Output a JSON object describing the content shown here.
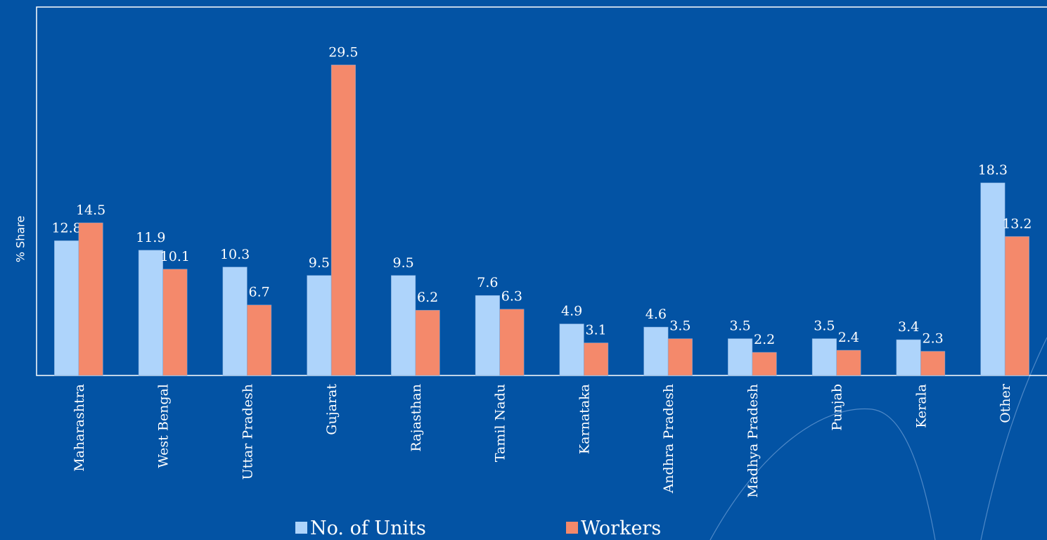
{
  "chart_data": {
    "type": "bar",
    "y_label": "% Share",
    "categories": [
      "Maharashtra",
      "West Bengal",
      "Uttar Pradesh",
      "Gujarat",
      "Rajasthan",
      "Tamil Nadu",
      "Karnataka",
      "Andhra Pradesh",
      "Madhya Pradesh",
      "Punjab",
      "Kerala",
      "Other"
    ],
    "series": [
      {
        "name": "No. of Units",
        "color": "#aed4fb",
        "values": [
          12.8,
          11.9,
          10.3,
          9.5,
          9.5,
          7.6,
          4.9,
          4.6,
          3.5,
          3.5,
          3.4,
          18.3
        ]
      },
      {
        "name": "Workers",
        "color": "#f4896b",
        "values": [
          14.5,
          10.1,
          6.7,
          29.5,
          6.2,
          6.3,
          3.1,
          3.5,
          2.2,
          2.4,
          2.3,
          13.2
        ]
      }
    ],
    "ylim": [
      0,
      35
    ],
    "legend": "bottom"
  }
}
